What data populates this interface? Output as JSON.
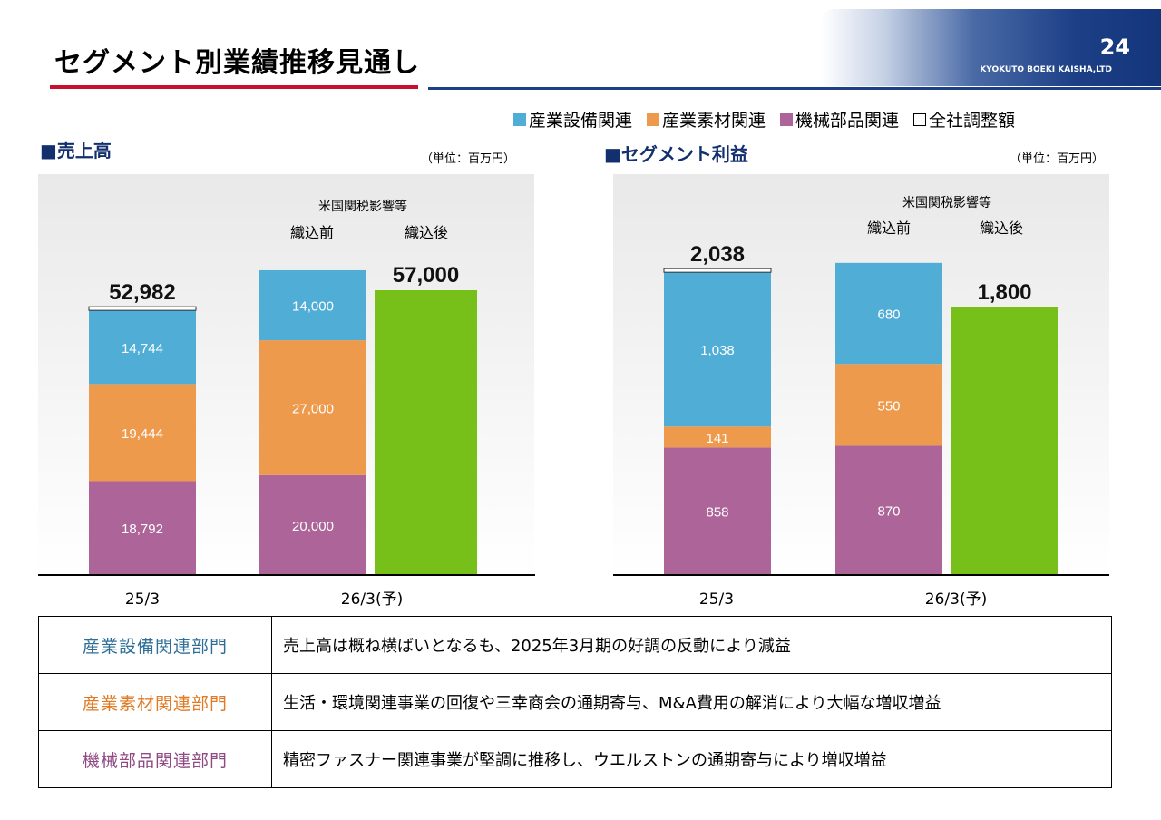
{
  "header": {
    "title": "セグメント別業績推移見通し",
    "page_number": "24",
    "company": "KYOKUTO BOEKI KAISHA,LTD"
  },
  "legend": [
    {
      "label": "産業設備関連",
      "color": "#4fadd6"
    },
    {
      "label": "産業素材関連",
      "color": "#ee9a4c"
    },
    {
      "label": "機械部品関連",
      "color": "#ad6499"
    },
    {
      "label": "全社調整額",
      "color": "#ffffff"
    }
  ],
  "chart_data": [
    {
      "type": "bar",
      "title": "■売上高",
      "unit": "（単位：百万円）",
      "annotation": "米国関税影響等",
      "categories": [
        "25/3",
        "26/3(予)",
        "26/3(予)"
      ],
      "category_labels": [
        "25/3",
        "26/3(予)"
      ],
      "bar_headers": [
        "",
        "織込前",
        "織込後"
      ],
      "series": [
        {
          "name": "機械部品関連",
          "values": [
            18792,
            20000,
            null
          ]
        },
        {
          "name": "産業素材関連",
          "values": [
            19444,
            27000,
            null
          ]
        },
        {
          "name": "産業設備関連",
          "values": [
            14744,
            14000,
            null
          ]
        },
        {
          "name": "全社調整額",
          "values": [
            2,
            null,
            null
          ]
        }
      ],
      "value_labels": [
        [
          "18,792",
          "19,444",
          "14,744"
        ],
        [
          "20,000",
          "27,000",
          "14,000"
        ],
        []
      ],
      "totals": [
        52982,
        null,
        57000
      ],
      "total_labels": [
        "52,982",
        "",
        "57,000"
      ],
      "green_total": 57000,
      "ylim": [
        0,
        62000
      ]
    },
    {
      "type": "bar",
      "title": "■セグメント利益",
      "unit": "（単位：百万円）",
      "annotation": "米国関税影響等",
      "categories": [
        "25/3",
        "26/3(予)",
        "26/3(予)"
      ],
      "category_labels": [
        "25/3",
        "26/3(予)"
      ],
      "bar_headers": [
        "",
        "織込前",
        "織込後"
      ],
      "series": [
        {
          "name": "機械部品関連",
          "values": [
            858,
            870,
            null
          ]
        },
        {
          "name": "産業素材関連",
          "values": [
            141,
            550,
            null
          ]
        },
        {
          "name": "産業設備関連",
          "values": [
            1038,
            680,
            null
          ]
        },
        {
          "name": "全社調整額",
          "values": [
            1,
            null,
            null
          ]
        }
      ],
      "value_labels": [
        [
          "858",
          "141",
          "1,038"
        ],
        [
          "870",
          "550",
          "680"
        ],
        []
      ],
      "totals": [
        2038,
        null,
        1800
      ],
      "total_labels": [
        "2,038",
        "",
        "1,800"
      ],
      "green_total": 1800,
      "ylim": [
        0,
        2300
      ]
    }
  ],
  "table": [
    {
      "segment": "産業設備関連部門",
      "color": "#2e6f97",
      "text": "売上高は概ね横ばいとなるも、2025年3月期の好調の反動により減益"
    },
    {
      "segment": "産業素材関連部門",
      "color": "#e07a24",
      "text": "生活・環境関連事業の回復や三幸商会の通期寄与、M&A費用の解消により大幅な増収増益"
    },
    {
      "segment": "機械部品関連部門",
      "color": "#8f4a83",
      "text": "精密ファスナー関連事業が堅調に推移し、ウエルストンの通期寄与により増収増益"
    }
  ],
  "colors": {
    "equipment": "#4fadd6",
    "materials": "#ee9a4c",
    "parts": "#ad6499",
    "after": "#77c019",
    "plot_bg_top": "#eeeeee",
    "plot_bg_bottom": "#ffffff"
  }
}
